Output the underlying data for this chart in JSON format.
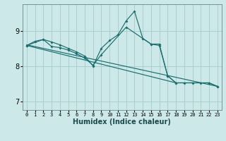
{
  "xlabel": "Humidex (Indice chaleur)",
  "background_color": "#cde8e8",
  "grid_color": "#aacfcf",
  "line_color": "#1a6e6e",
  "xlim": [
    -0.5,
    23.5
  ],
  "ylim": [
    6.75,
    9.75
  ],
  "yticks": [
    7,
    8,
    9
  ],
  "xticks": [
    0,
    1,
    2,
    3,
    4,
    5,
    6,
    7,
    8,
    9,
    10,
    11,
    12,
    13,
    14,
    15,
    16,
    17,
    18,
    19,
    20,
    21,
    22,
    23
  ],
  "line1_x": [
    0,
    1,
    2,
    3,
    4,
    5,
    6,
    7,
    8,
    9,
    10,
    11,
    12,
    13,
    14,
    15,
    16,
    17,
    18,
    19,
    20,
    21,
    22,
    23
  ],
  "line1_y": [
    8.58,
    8.7,
    8.75,
    8.68,
    8.6,
    8.5,
    8.4,
    8.28,
    8.0,
    8.5,
    8.72,
    8.88,
    9.28,
    9.55,
    8.78,
    8.62,
    8.62,
    7.72,
    7.52,
    7.52,
    7.52,
    7.52,
    7.52,
    7.42
  ],
  "line2_x": [
    0,
    2,
    3,
    4,
    5,
    6,
    7,
    8,
    9,
    12,
    15,
    16,
    17,
    18,
    22,
    23
  ],
  "line2_y": [
    8.58,
    8.75,
    8.55,
    8.52,
    8.45,
    8.35,
    8.22,
    8.02,
    8.32,
    9.1,
    8.62,
    8.58,
    7.72,
    7.52,
    7.52,
    7.42
  ],
  "trend1_x": [
    0,
    23
  ],
  "trend1_y": [
    8.6,
    7.42
  ],
  "trend2_x": [
    0,
    18
  ],
  "trend2_y": [
    8.58,
    7.52
  ]
}
